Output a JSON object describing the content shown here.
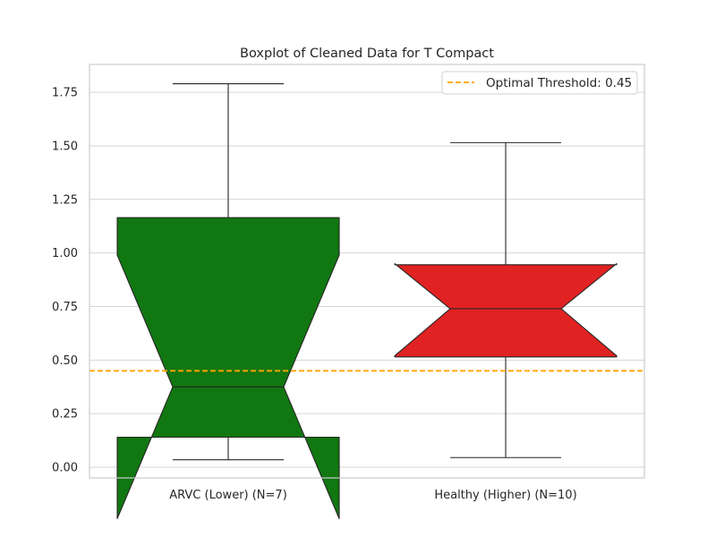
{
  "chart_data": {
    "type": "boxplot",
    "title": "Boxplot of Cleaned Data for T Compact",
    "xlabel": "",
    "ylabel": "",
    "ylim": [
      -0.05,
      1.88
    ],
    "yticks": [
      "0.00",
      "0.25",
      "0.50",
      "0.75",
      "1.00",
      "1.25",
      "1.50",
      "1.75"
    ],
    "ytick_values": [
      0,
      0.25,
      0.5,
      0.75,
      1.0,
      1.25,
      1.5,
      1.75
    ],
    "grid": true,
    "notched": true,
    "categories": [
      "ARVC (Lower) (N=7)",
      "Healthy (Higher) (N=10)"
    ],
    "boxes": [
      {
        "category": "ARVC (Lower) (N=7)",
        "color": "#117711",
        "whisker_low": 0.035,
        "q1": 0.14,
        "median": 0.375,
        "q3": 1.165,
        "whisker_high": 1.79,
        "notch_low": -0.24,
        "notch_high": 0.99
      },
      {
        "category": "Healthy (Higher) (N=10)",
        "color": "#e12222",
        "whisker_low": 0.045,
        "q1": 0.515,
        "median": 0.74,
        "q3": 0.945,
        "whisker_high": 1.515,
        "notch_low": 0.52,
        "notch_high": 0.95
      }
    ],
    "threshold": {
      "value": 0.45,
      "label": "Optimal Threshold: 0.45",
      "color": "#ffa500",
      "style": "dashed"
    },
    "legend": {
      "placement": "top-right"
    }
  }
}
